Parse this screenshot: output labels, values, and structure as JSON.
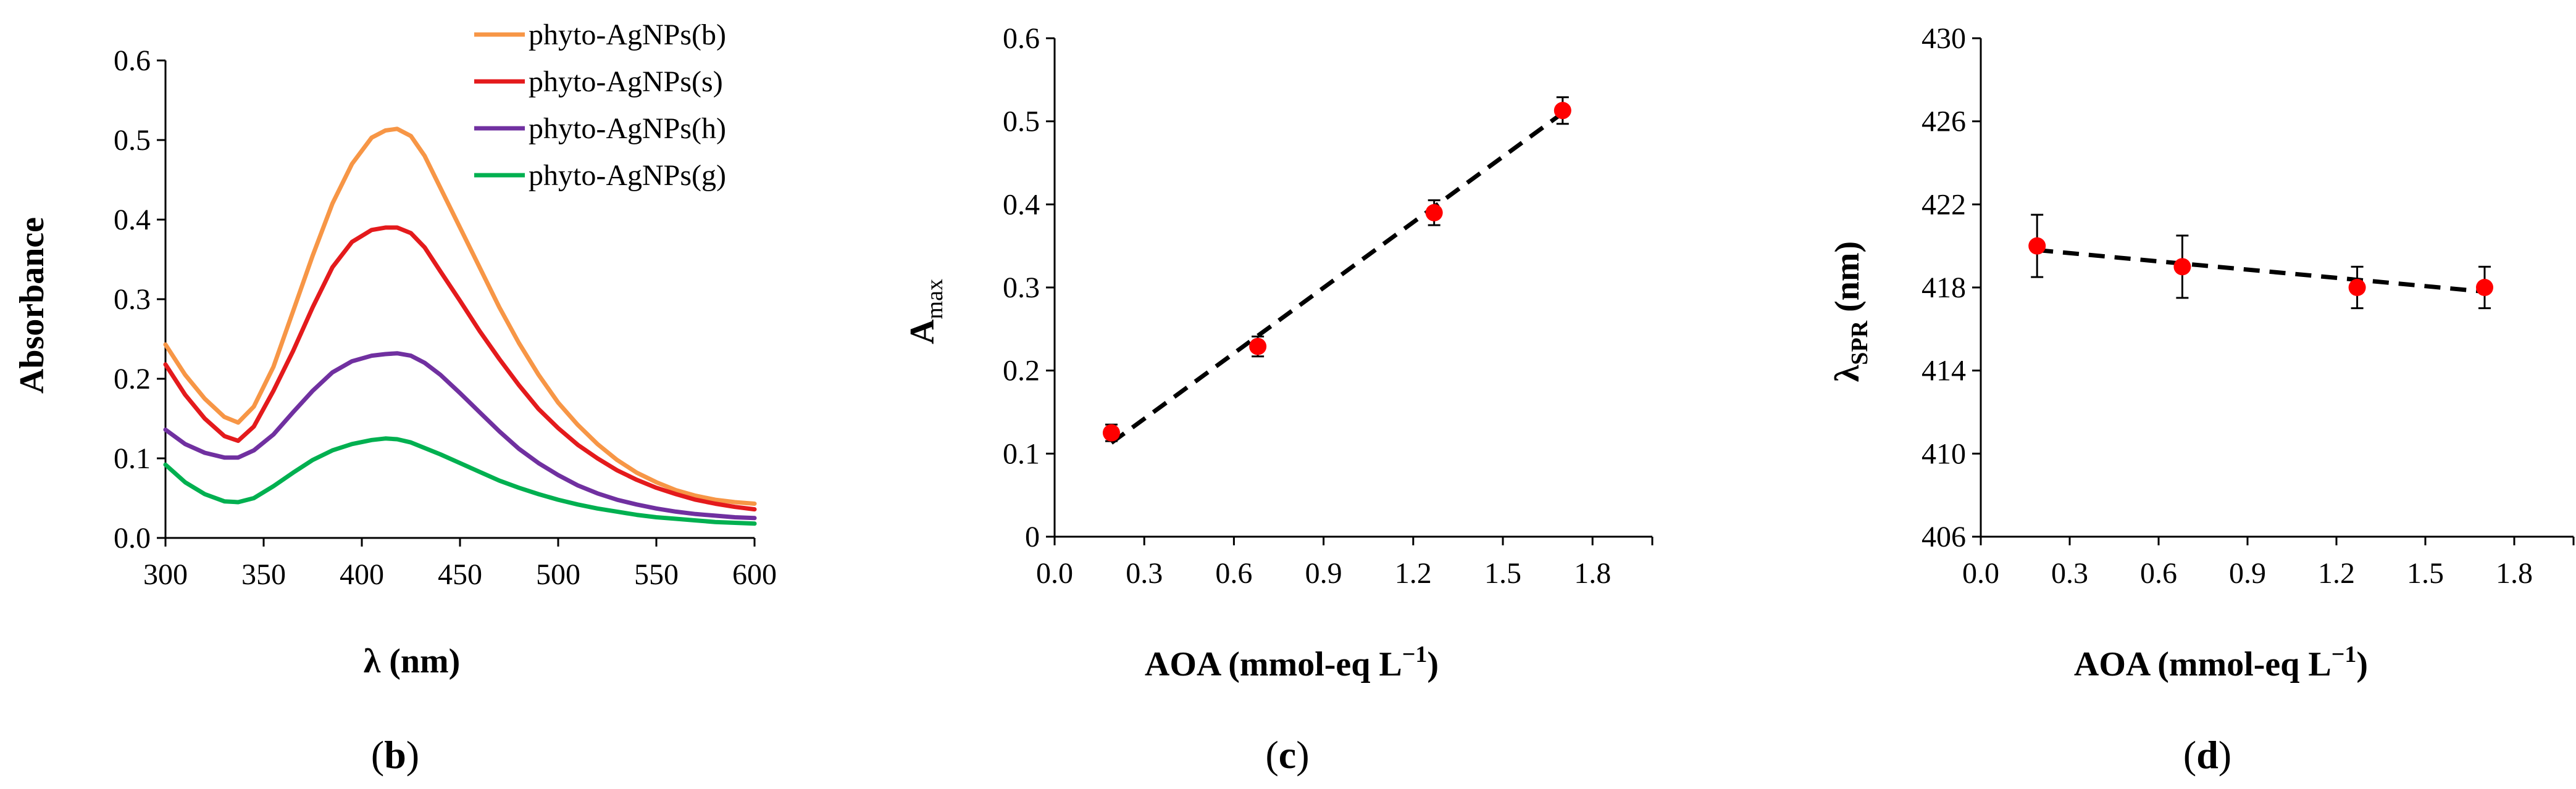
{
  "colors": {
    "axis": "#000000",
    "series_b": "#F79646",
    "series_s": "#E41A1C",
    "series_h": "#7030A0",
    "series_g": "#00B050",
    "point": "#FF0000"
  },
  "chart_data": [
    {
      "id": "b",
      "type": "line",
      "panel_label": {
        "open": "(",
        "letter": "b",
        "close": ")"
      },
      "xlabel": "λ (nm)",
      "ylabel": "Absorbance",
      "xlim": [
        300,
        600
      ],
      "ylim": [
        0,
        0.6
      ],
      "xticks": [
        "300",
        "350",
        "400",
        "450",
        "500",
        "550",
        "600"
      ],
      "yticks": [
        "0.0",
        "0.1",
        "0.2",
        "0.3",
        "0.4",
        "0.5",
        "0.6"
      ],
      "legend_position": "top-right",
      "x": [
        300,
        310,
        320,
        330,
        337,
        345,
        355,
        365,
        375,
        385,
        395,
        405,
        412,
        418,
        425,
        432,
        440,
        450,
        460,
        470,
        480,
        490,
        500,
        510,
        520,
        530,
        540,
        550,
        560,
        570,
        580,
        590,
        600
      ],
      "series": [
        {
          "name": "phyto-AgNPs(b)",
          "color_key": "series_b",
          "values": [
            0.243,
            0.205,
            0.175,
            0.152,
            0.145,
            0.165,
            0.215,
            0.285,
            0.355,
            0.42,
            0.47,
            0.503,
            0.512,
            0.514,
            0.505,
            0.48,
            0.44,
            0.39,
            0.34,
            0.29,
            0.245,
            0.205,
            0.17,
            0.142,
            0.118,
            0.098,
            0.082,
            0.07,
            0.06,
            0.053,
            0.048,
            0.045,
            0.043
          ]
        },
        {
          "name": "phyto-AgNPs(s)",
          "color_key": "series_s",
          "values": [
            0.218,
            0.18,
            0.15,
            0.128,
            0.122,
            0.14,
            0.185,
            0.235,
            0.29,
            0.34,
            0.372,
            0.387,
            0.39,
            0.39,
            0.383,
            0.365,
            0.335,
            0.298,
            0.26,
            0.225,
            0.192,
            0.162,
            0.138,
            0.117,
            0.1,
            0.085,
            0.073,
            0.063,
            0.055,
            0.048,
            0.043,
            0.039,
            0.036
          ]
        },
        {
          "name": "phyto-AgNPs(h)",
          "color_key": "series_h",
          "values": [
            0.136,
            0.118,
            0.107,
            0.101,
            0.101,
            0.11,
            0.13,
            0.158,
            0.185,
            0.208,
            0.222,
            0.229,
            0.231,
            0.232,
            0.229,
            0.22,
            0.205,
            0.182,
            0.158,
            0.134,
            0.112,
            0.094,
            0.079,
            0.066,
            0.056,
            0.048,
            0.042,
            0.037,
            0.033,
            0.03,
            0.028,
            0.026,
            0.025
          ]
        },
        {
          "name": "phyto-AgNPs(g)",
          "color_key": "series_g",
          "values": [
            0.092,
            0.07,
            0.055,
            0.046,
            0.045,
            0.05,
            0.065,
            0.082,
            0.098,
            0.11,
            0.118,
            0.123,
            0.125,
            0.124,
            0.12,
            0.113,
            0.105,
            0.094,
            0.083,
            0.072,
            0.063,
            0.055,
            0.048,
            0.042,
            0.037,
            0.033,
            0.029,
            0.026,
            0.024,
            0.022,
            0.02,
            0.019,
            0.018
          ]
        }
      ]
    },
    {
      "id": "c",
      "type": "scatter",
      "panel_label": {
        "open": "(",
        "letter": "c",
        "close": ")"
      },
      "xlabel_main": "AOA (mmol-eq L",
      "xlabel_sup": "−1",
      "xlabel_end": ")",
      "ylabel_main": "A",
      "ylabel_sub": "max",
      "xlim": [
        0,
        2.0
      ],
      "ylim": [
        0,
        0.6
      ],
      "xticks": [
        "0.0",
        "0.3",
        "0.6",
        "0.9",
        "1.2",
        "1.5",
        "1.8"
      ],
      "yticks": [
        "0",
        "0.1",
        "0.2",
        "0.3",
        "0.4",
        "0.5",
        "0.6"
      ],
      "x": [
        0.19,
        0.68,
        1.27,
        1.7
      ],
      "y": [
        0.125,
        0.229,
        0.39,
        0.513
      ],
      "error": [
        0.01,
        0.012,
        0.015,
        0.016
      ],
      "trendline": {
        "style": "dashed",
        "x": [
          0.19,
          1.7
        ],
        "y": [
          0.113,
          0.51
        ]
      }
    },
    {
      "id": "d",
      "type": "scatter",
      "panel_label": {
        "open": "(",
        "letter": "d",
        "close": ")"
      },
      "xlabel_main": "AOA (mmol-eq L",
      "xlabel_sup": "−1",
      "xlabel_end": ")",
      "ylabel_main": "λ",
      "ylabel_sub": "SPR",
      "ylabel_end": " (nm)",
      "xlim": [
        0,
        2.0
      ],
      "ylim": [
        406,
        430
      ],
      "xticks": [
        "0.0",
        "0.3",
        "0.6",
        "0.9",
        "1.2",
        "1.5",
        "1.8"
      ],
      "yticks": [
        "406",
        "410",
        "414",
        "418",
        "422",
        "426",
        "430"
      ],
      "x": [
        0.19,
        0.68,
        1.27,
        1.7
      ],
      "y": [
        420.0,
        419.0,
        418.0,
        418.0
      ],
      "error": [
        1.5,
        1.5,
        1.0,
        1.0
      ],
      "trendline": {
        "style": "dashed",
        "x": [
          0.19,
          1.7
        ],
        "y": [
          419.8,
          417.8
        ]
      }
    }
  ]
}
